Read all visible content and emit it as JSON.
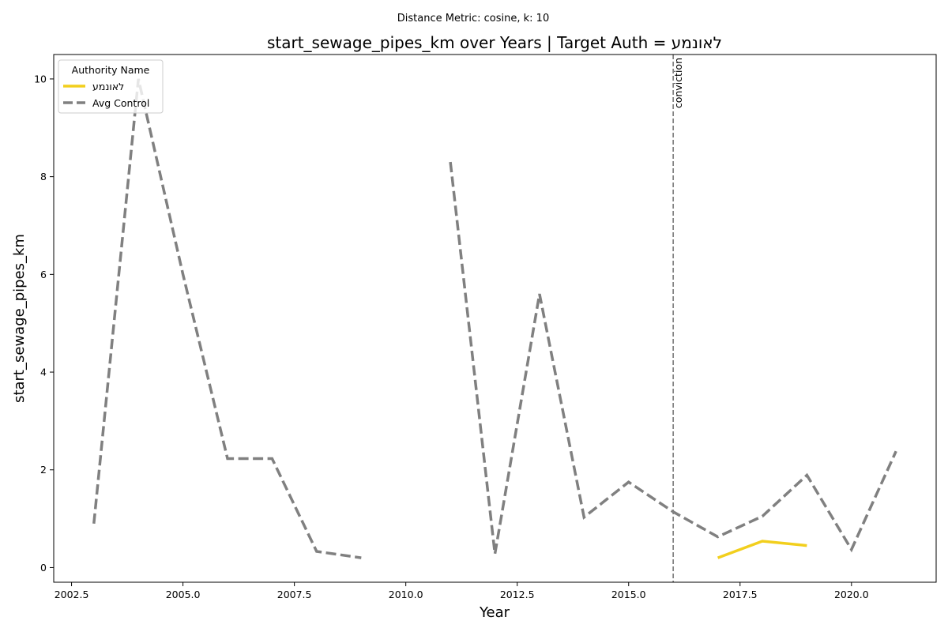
{
  "chart_data": {
    "type": "line",
    "suptitle": "Distance Metric: cosine, k: 10",
    "title": "start_sewage_pipes_km over Years | Target Auth = לאונמע",
    "xlabel": "Year",
    "ylabel": "start_sewage_pipes_km",
    "xlim": [
      2002.1,
      2021.9
    ],
    "ylim": [
      -0.3,
      10.5
    ],
    "xticks": [
      2002.5,
      2005.0,
      2007.5,
      2010.0,
      2012.5,
      2015.0,
      2017.5,
      2020.0
    ],
    "xtick_labels": [
      "2002.5",
      "2005.0",
      "2007.5",
      "2010.0",
      "2012.5",
      "2015.0",
      "2017.5",
      "2020.0"
    ],
    "yticks": [
      0,
      2,
      4,
      6,
      8,
      10
    ],
    "ytick_labels": [
      "0",
      "2",
      "4",
      "6",
      "8",
      "10"
    ],
    "grid": false,
    "legend": {
      "title": "Authority Name",
      "placement": "upper-left"
    },
    "series": [
      {
        "name": "לאונמע",
        "color": "#f2cf1d",
        "style": "solid",
        "x": [
          2017,
          2018,
          2019
        ],
        "y": [
          0.2,
          0.54,
          0.45
        ]
      },
      {
        "name": "Avg Control",
        "color": "#808080",
        "style": "dashed",
        "x": [
          2003,
          2004,
          2005,
          2006,
          2007,
          2008,
          2009,
          2010,
          2011,
          2012,
          2013,
          2014,
          2015,
          2016,
          2017,
          2018,
          2019,
          2020,
          2021
        ],
        "y": [
          0.9,
          10.0,
          6.0,
          2.23,
          2.23,
          0.33,
          0.2,
          null,
          8.3,
          0.28,
          5.6,
          1.03,
          1.75,
          1.14,
          0.63,
          1.05,
          1.89,
          0.37,
          2.38
        ]
      }
    ],
    "annotations": [
      {
        "type": "vline",
        "x": 2016,
        "label": "conviction",
        "color": "#808080"
      }
    ]
  }
}
